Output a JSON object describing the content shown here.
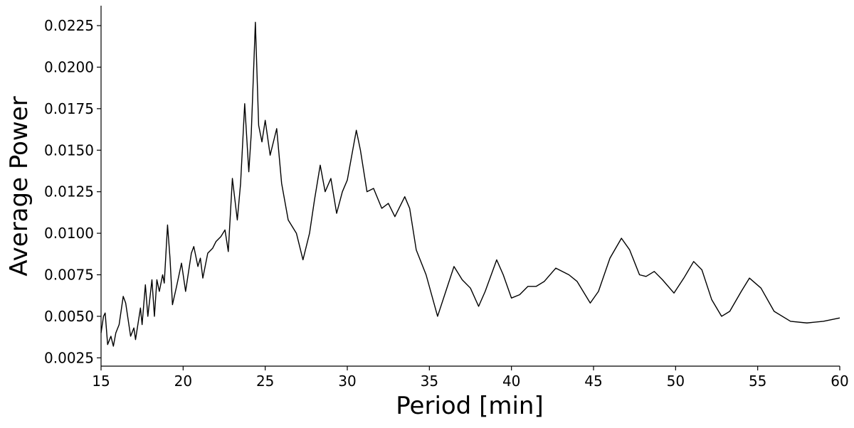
{
  "chart_data": {
    "type": "line",
    "x_label": "Period [min]",
    "y_label": "Average Power",
    "xlim": [
      15,
      60
    ],
    "ylim": [
      0.002,
      0.0237
    ],
    "xticks": [
      15,
      20,
      25,
      30,
      35,
      40,
      45,
      50,
      55,
      60
    ],
    "yticks": [
      0.0025,
      {
        "value": 0.005,
        "label": "0.0050"
      },
      0.0075,
      {
        "value": 0.01,
        "label": "0.0100"
      },
      0.0125,
      {
        "value": 0.015,
        "label": "0.0150"
      },
      0.0175,
      {
        "value": 0.02,
        "label": "0.0200"
      },
      0.0225
    ],
    "series": [
      {
        "color": "#000000",
        "x": [
          15.0,
          15.15,
          15.25,
          15.4,
          15.6,
          15.75,
          15.9,
          16.1,
          16.35,
          16.5,
          16.8,
          17.0,
          17.1,
          17.4,
          17.5,
          17.7,
          17.85,
          18.1,
          18.25,
          18.4,
          18.55,
          18.75,
          18.85,
          19.05,
          19.2,
          19.35,
          19.6,
          19.9,
          20.15,
          20.5,
          20.65,
          20.9,
          21.05,
          21.2,
          21.5,
          21.8,
          22.0,
          22.3,
          22.55,
          22.75,
          23.0,
          23.3,
          23.5,
          23.75,
          24.0,
          24.15,
          24.4,
          24.6,
          24.8,
          25.0,
          25.3,
          25.7,
          26.0,
          26.4,
          26.9,
          27.3,
          27.7,
          28.0,
          28.35,
          28.65,
          29.0,
          29.35,
          29.7,
          30.0,
          30.55,
          30.8,
          31.2,
          31.6,
          32.1,
          32.5,
          32.9,
          33.5,
          33.8,
          34.2,
          34.8,
          35.5,
          36.0,
          36.5,
          37.0,
          37.5,
          38.0,
          38.4,
          39.1,
          39.5,
          40.0,
          40.5,
          41.0,
          41.5,
          42.0,
          42.7,
          43.5,
          44.0,
          44.8,
          45.3,
          46.0,
          46.7,
          47.2,
          47.8,
          48.2,
          48.7,
          49.2,
          49.9,
          50.5,
          51.1,
          51.6,
          52.2,
          52.8,
          53.3,
          54.0,
          54.5,
          55.2,
          56.0,
          57.0,
          58.0,
          59.0,
          60.0
        ],
        "values": [
          0.004,
          0.005,
          0.0052,
          0.0033,
          0.0038,
          0.0032,
          0.004,
          0.0045,
          0.0062,
          0.0058,
          0.0038,
          0.0043,
          0.0036,
          0.0055,
          0.0045,
          0.0069,
          0.005,
          0.0072,
          0.005,
          0.0072,
          0.0065,
          0.0075,
          0.007,
          0.0105,
          0.0085,
          0.0057,
          0.0068,
          0.0082,
          0.0065,
          0.0088,
          0.0092,
          0.008,
          0.0085,
          0.0073,
          0.0088,
          0.0091,
          0.0095,
          0.0098,
          0.0102,
          0.0089,
          0.0133,
          0.0108,
          0.013,
          0.0178,
          0.0137,
          0.016,
          0.0227,
          0.0165,
          0.0155,
          0.0168,
          0.0147,
          0.0163,
          0.013,
          0.0108,
          0.01,
          0.0084,
          0.01,
          0.012,
          0.0141,
          0.0125,
          0.0133,
          0.0112,
          0.0125,
          0.0132,
          0.0162,
          0.015,
          0.0125,
          0.0127,
          0.0115,
          0.0118,
          0.011,
          0.0122,
          0.0115,
          0.009,
          0.0075,
          0.005,
          0.0065,
          0.008,
          0.0072,
          0.0067,
          0.0056,
          0.0065,
          0.0084,
          0.0075,
          0.0061,
          0.0063,
          0.0068,
          0.0068,
          0.0071,
          0.0079,
          0.0075,
          0.0071,
          0.0058,
          0.0065,
          0.0085,
          0.0097,
          0.009,
          0.0075,
          0.0074,
          0.0077,
          0.0072,
          0.0064,
          0.0073,
          0.0083,
          0.0078,
          0.006,
          0.005,
          0.0053,
          0.0065,
          0.0073,
          0.0067,
          0.0053,
          0.0047,
          0.0046,
          0.0047,
          0.0049
        ]
      }
    ]
  }
}
